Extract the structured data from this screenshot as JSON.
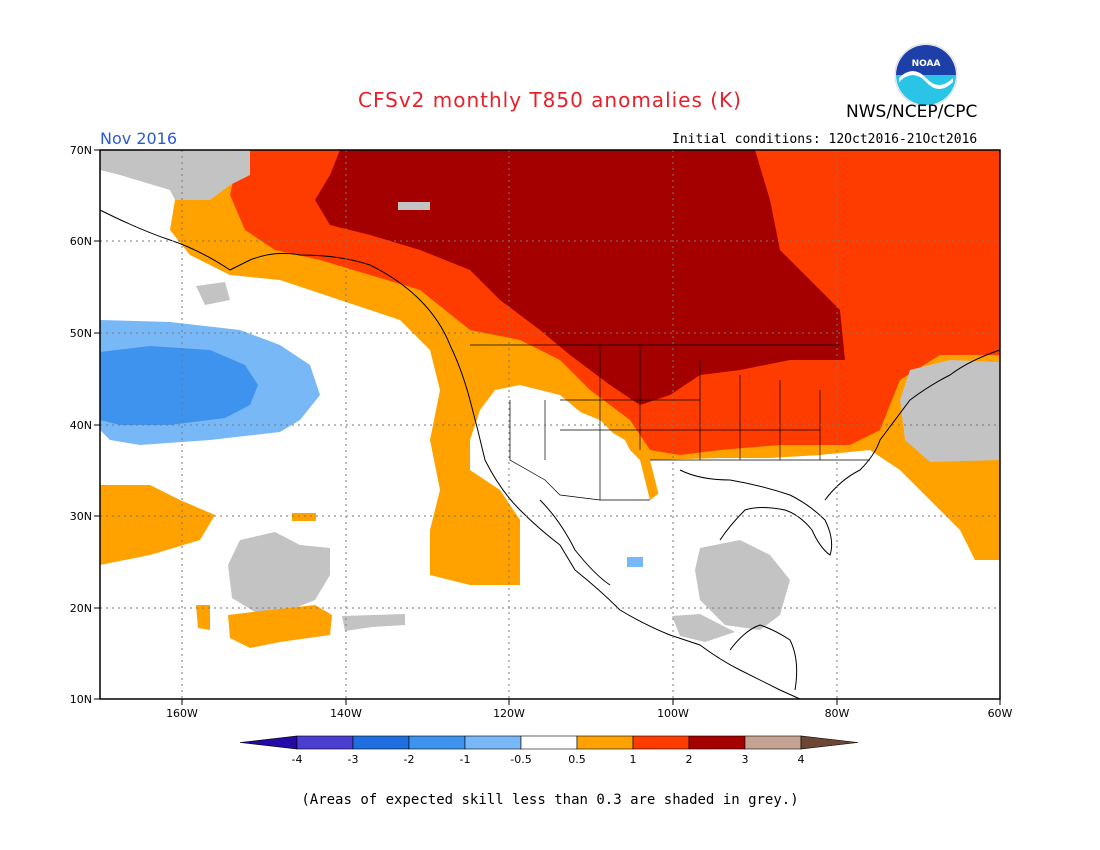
{
  "header": {
    "title": "CFSv2 monthly T850 anomalies (K)",
    "organization": "NWS/NCEP/CPC",
    "logo_text": "NOAA",
    "month": "Nov 2016",
    "initial_conditions": "Initial conditions: 12Oct2016-21Oct2016"
  },
  "map": {
    "lat_labels": [
      "70N",
      "60N",
      "50N",
      "40N",
      "30N",
      "20N",
      "10N"
    ],
    "lon_labels": [
      "160W",
      "140W",
      "120W",
      "100W",
      "80W",
      "60W"
    ],
    "extent": {
      "lon_min": -171,
      "lon_max": -60,
      "lat_min": 10,
      "lat_max": 70
    }
  },
  "colorbar": {
    "labels": [
      "-4",
      "-3",
      "-2",
      "-1",
      "-0.5",
      "0.5",
      "1",
      "2",
      "3",
      "4"
    ],
    "colors": [
      "#240aa6",
      "#4a3ed0",
      "#1f6ee0",
      "#3d93ee",
      "#79b8f7",
      "#ffffff",
      "#ffa200",
      "#ff3c00",
      "#a50000",
      "#c6a292",
      "#6e4634"
    ]
  },
  "colors": {
    "title": "#e8202a",
    "month": "#2a5bd6",
    "grey_low_skill": "#c3c3c3"
  },
  "footnote": "(Areas of expected skill less than 0.3 are shaded in grey.)"
}
